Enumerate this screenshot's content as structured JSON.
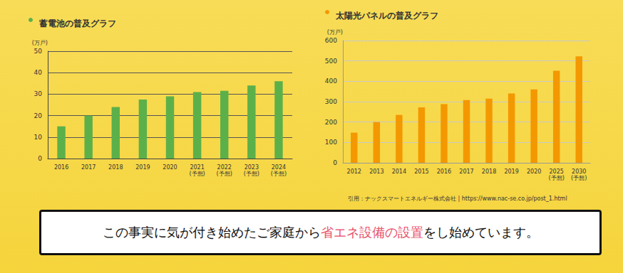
{
  "chart_data": [
    {
      "type": "bar",
      "title": "蓄電池の普及グラフ",
      "y_label": "(万戸)",
      "categories": [
        "2016",
        "2017",
        "2018",
        "2019",
        "2020",
        "2021\n(予想)",
        "2022\n(予想)",
        "2023\n(予想)",
        "2024\n(予想)"
      ],
      "values": [
        15,
        20,
        24,
        27.5,
        29,
        31,
        31.5,
        34,
        36
      ],
      "color": "#5cb04a",
      "ylim": [
        0,
        50
      ],
      "yticks": [
        0,
        10,
        20,
        30,
        40,
        50
      ],
      "grid": true
    },
    {
      "type": "bar",
      "title": "太陽光パネルの普及グラフ",
      "y_label": "(万戸)",
      "categories": [
        "2012",
        "2013",
        "2014",
        "2015",
        "2016",
        "2017",
        "2018",
        "2019",
        "2020",
        "2025\n(予想)",
        "2030\n(予想)"
      ],
      "values": [
        148,
        200,
        235,
        272,
        288,
        308,
        315,
        340,
        360,
        452,
        522
      ],
      "color": "#f39800",
      "ylim": [
        0,
        600
      ],
      "yticks": [
        0,
        100,
        200,
        300,
        400,
        500,
        600
      ],
      "grid": true
    }
  ],
  "source": "引用：ナックスマートエネルギー株式会社 | https://www.nac-se.co.jp/post_1.html",
  "caption": [
    {
      "text": "この事実に気が付き始めたご家庭から"
    },
    {
      "text": "省エネ設備の設置",
      "highlight": true
    },
    {
      "text": "をし始めています。"
    }
  ]
}
